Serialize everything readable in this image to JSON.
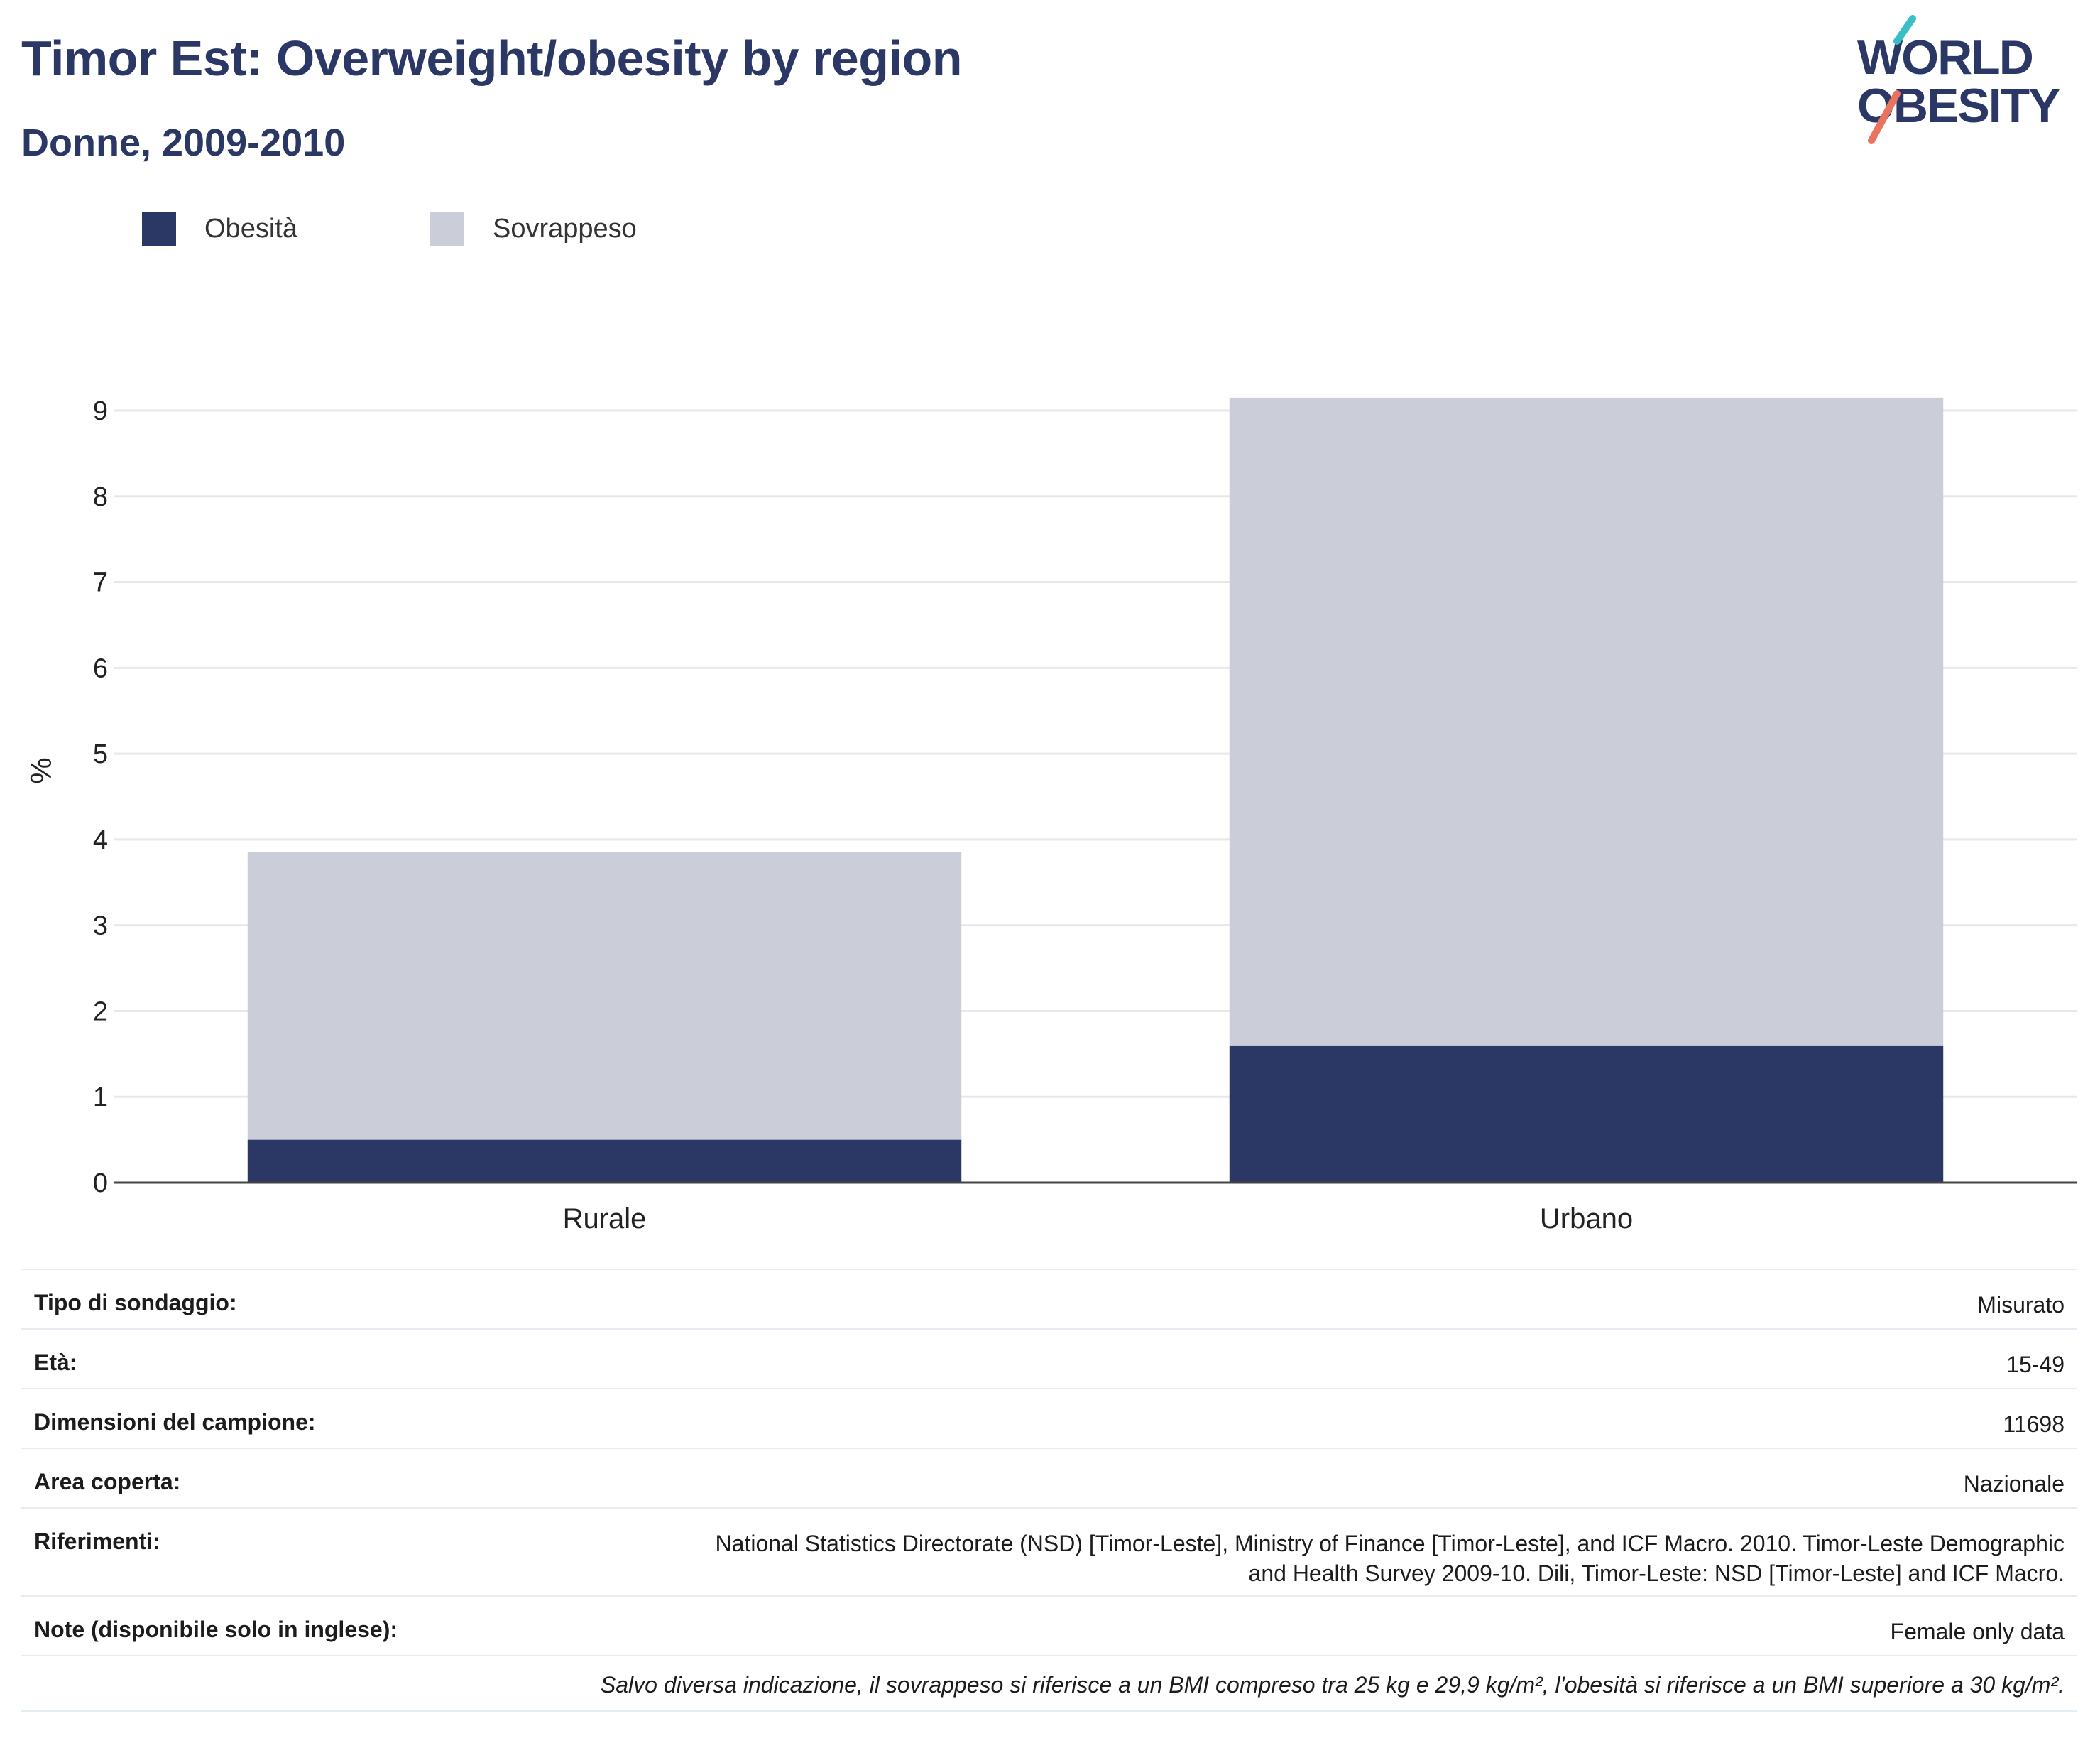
{
  "header": {
    "title": "Timor Est: Overweight/obesity by region",
    "subtitle": "Donne, 2009-2010"
  },
  "logo": {
    "line1": "WORLD",
    "line2": "OBESITY"
  },
  "colors": {
    "obesity": "#2b3764",
    "overweight": "#cbcdd8",
    "title": "#2b3764",
    "accent_teal": "#3bbfc6",
    "accent_coral": "#e8735e"
  },
  "legend": [
    {
      "label": "Obesità",
      "color": "#2b3764"
    },
    {
      "label": "Sovrappeso",
      "color": "#cbcdd8"
    }
  ],
  "chart_data": {
    "type": "bar",
    "stacked": true,
    "categories": [
      "Rurale",
      "Urbano"
    ],
    "series": [
      {
        "name": "Obesità",
        "values": [
          0.5,
          1.6
        ]
      },
      {
        "name": "Sovrappeso",
        "values": [
          3.35,
          7.55
        ]
      }
    ],
    "ylabel": "%",
    "xlabel": "",
    "ylim": [
      0,
      9
    ],
    "yticks": [
      0,
      1,
      2,
      3,
      4,
      5,
      6,
      7,
      8,
      9
    ],
    "grid": true,
    "legend_position": "top-left"
  },
  "meta": {
    "rows": [
      {
        "key": "Tipo di sondaggio:",
        "value": "Misurato"
      },
      {
        "key": "Età:",
        "value": "15-49"
      },
      {
        "key": "Dimensioni del campione:",
        "value": "11698"
      },
      {
        "key": "Area coperta:",
        "value": "Nazionale"
      },
      {
        "key": "Riferimenti:",
        "value_lines": [
          "National Statistics Directorate (NSD) [Timor-Leste], Ministry of Finance [Timor-Leste], and ICF Macro. 2010. Timor-Leste Demographic",
          "and Health Survey 2009-10. Dili, Timor-Leste: NSD [Timor-Leste] and ICF Macro."
        ]
      },
      {
        "key": "Note (disponibile solo in inglese):",
        "value": "Female only data"
      }
    ],
    "footnote": "Salvo diversa indicazione, il sovrappeso si riferisce a un BMI compreso tra 25 kg e 29,9 kg/m², l'obesità si riferisce a un BMI superiore a 30 kg/m²."
  }
}
